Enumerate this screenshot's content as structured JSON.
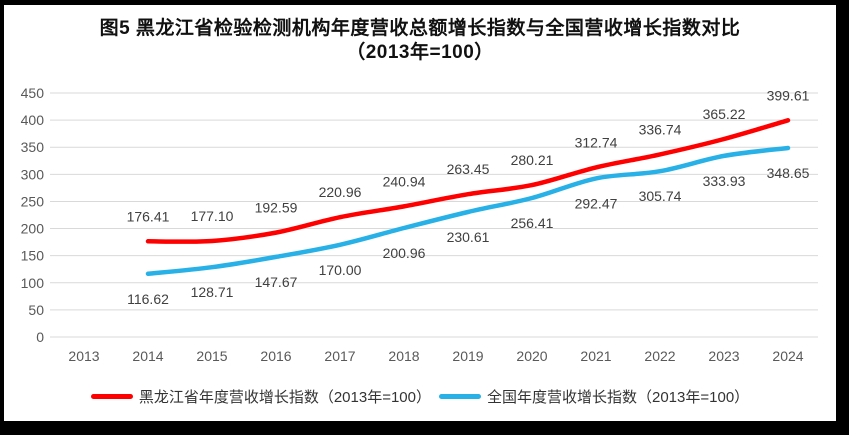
{
  "title": {
    "line1": "图5  黑龙江省检验检测机构年度营收总额增长指数与全国营收增长指数对比",
    "line2": "（2013年=100）"
  },
  "chart_data": {
    "type": "line",
    "categories": [
      "2013",
      "2014",
      "2015",
      "2016",
      "2017",
      "2018",
      "2019",
      "2020",
      "2021",
      "2022",
      "2023",
      "2024"
    ],
    "series": [
      {
        "name": "黑龙江省年度营收增长指数（2013年=100）",
        "color": "#FF0000",
        "start_category_index": 1,
        "values": [
          176.41,
          177.1,
          192.59,
          220.96,
          240.94,
          263.45,
          280.21,
          312.74,
          336.74,
          365.22,
          399.61
        ],
        "labels_position": "above"
      },
      {
        "name": "全国年度营收增长指数（2013年=100）",
        "color": "#27B1E7",
        "start_category_index": 1,
        "values": [
          116.62,
          128.71,
          147.67,
          170.0,
          200.96,
          230.61,
          256.41,
          292.47,
          305.74,
          333.93,
          348.65
        ],
        "labels_position": "below"
      }
    ],
    "title": "图5  黑龙江省检验检测机构年度营收总额增长指数与全国营收增长指数对比（2013年=100）",
    "xlabel": "",
    "ylabel": "",
    "ylim": [
      0,
      450
    ],
    "yticks": [
      0,
      50,
      100,
      150,
      200,
      250,
      300,
      350,
      400,
      450
    ],
    "grid": true,
    "legend_position": "bottom",
    "data_label_decimals": 2,
    "colors": {
      "gridline": "#D9D9D9",
      "axis_text": "#595959",
      "data_label_text": "#404040",
      "title_text": "#111111",
      "frame_border": "#000000"
    }
  }
}
